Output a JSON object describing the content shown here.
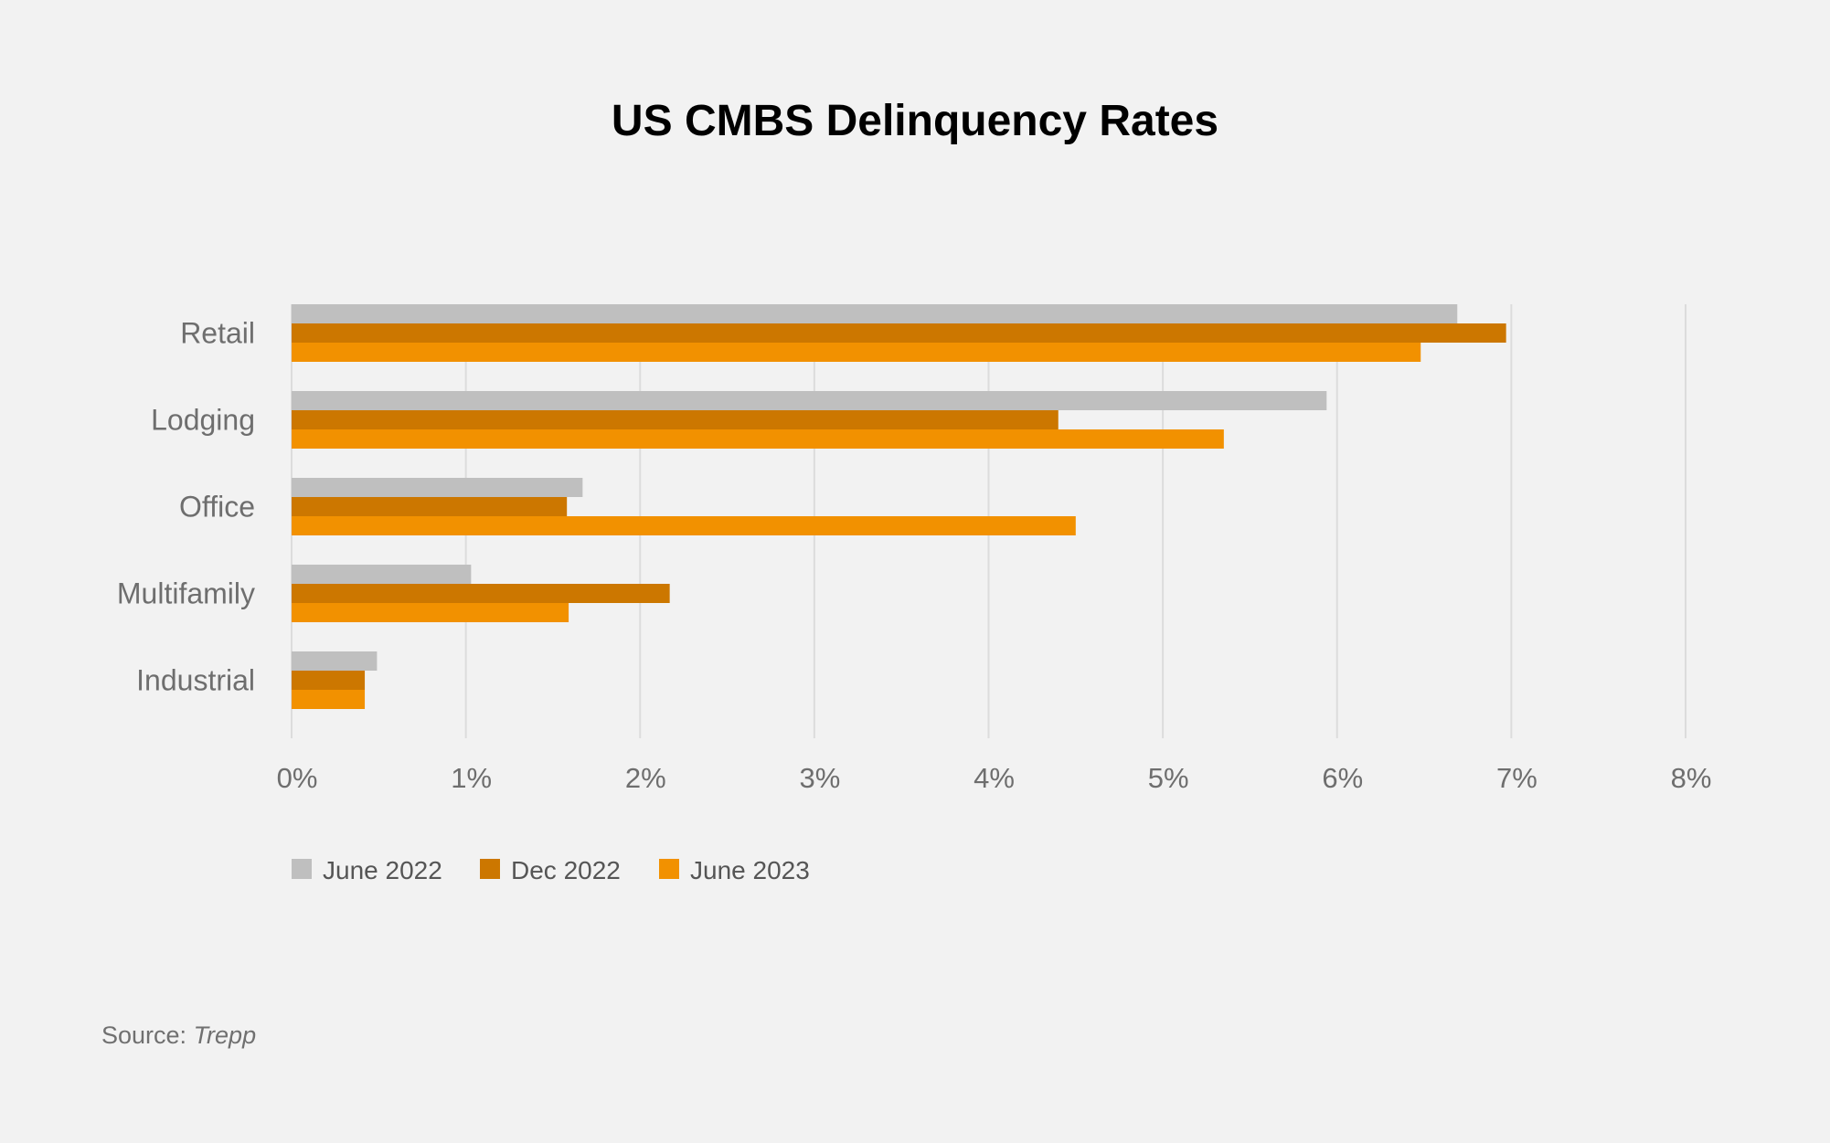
{
  "chart_data": {
    "type": "bar",
    "orientation": "horizontal",
    "title": "US CMBS Delinquency Rates",
    "categories": [
      "Retail",
      "Lodging",
      "Office",
      "Multifamily",
      "Industrial"
    ],
    "series": [
      {
        "name": "June 2022",
        "color": "#bfbfbf",
        "values": [
          6.69,
          5.94,
          1.67,
          1.03,
          0.49
        ]
      },
      {
        "name": "Dec 2022",
        "color": "#cc7700",
        "values": [
          6.97,
          4.4,
          1.58,
          2.17,
          0.42
        ]
      },
      {
        "name": "June 2023",
        "color": "#f29100",
        "values": [
          6.48,
          5.35,
          4.5,
          1.59,
          0.42
        ]
      }
    ],
    "xlim": [
      0,
      8
    ],
    "xticks": [
      "0%",
      "1%",
      "2%",
      "3%",
      "4%",
      "5%",
      "6%",
      "7%",
      "8%"
    ],
    "grid": true,
    "legend_position": "bottom-left"
  },
  "source": {
    "prefix": "Source: ",
    "name": "Trepp"
  }
}
